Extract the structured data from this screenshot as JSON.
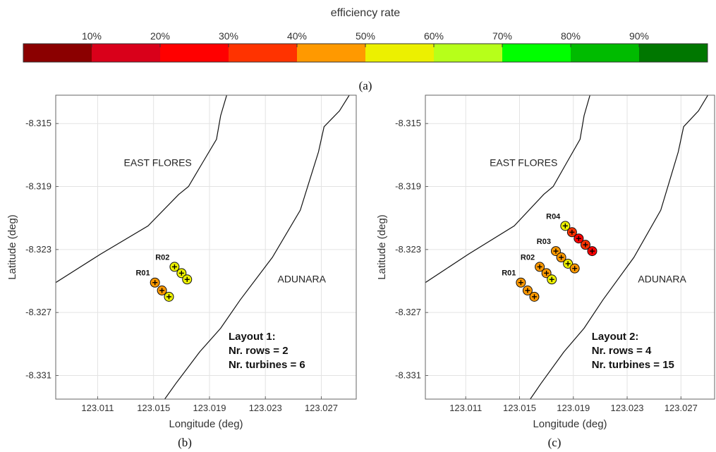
{
  "colorbar": {
    "title": "efficiency rate",
    "tick_labels": [
      "10%",
      "20%",
      "30%",
      "40%",
      "50%",
      "60%",
      "70%",
      "80%",
      "90%"
    ],
    "ticks": [
      10,
      20,
      30,
      40,
      50,
      60,
      70,
      80,
      90
    ],
    "range": [
      0,
      100
    ],
    "colors": [
      "#8b0000",
      "#d9001a",
      "#ff0000",
      "#ff3300",
      "#ff9900",
      "#ecf000",
      "#b7ff1a",
      "#00ff00",
      "#00bb00",
      "#007700"
    ]
  },
  "panel_labels": {
    "a": "(a)",
    "b": "(b)",
    "c": "(c)"
  },
  "chart_data": [
    {
      "type": "scatter",
      "panel": "b",
      "xlabel": "Longitude (deg)",
      "ylabel": "Latitude (deg)",
      "xlim": [
        123.008,
        123.0295
      ],
      "ylim": [
        -8.3325,
        -8.3132
      ],
      "xticks": [
        123.011,
        123.015,
        123.019,
        123.023,
        123.027
      ],
      "yticks": [
        -8.315,
        -8.319,
        -8.323,
        -8.327,
        -8.331
      ],
      "xtick_labels": [
        "123.011",
        "123.015",
        "123.019",
        "123.023",
        "123.027"
      ],
      "ytick_labels": [
        "-8.315",
        "-8.319",
        "-8.323",
        "-8.327",
        "-8.331"
      ],
      "grid": true,
      "regions": [
        {
          "label": "EAST FLORES",
          "x": 123.0153,
          "y": -8.3177
        },
        {
          "label": "ADUNARA",
          "x": 123.0256,
          "y": -8.3251
        }
      ],
      "coastlines": [
        [
          [
            123.008,
            -8.3251
          ],
          [
            123.0112,
            -8.3233
          ],
          [
            123.0146,
            -8.3215
          ],
          [
            123.0168,
            -8.3195
          ],
          [
            123.0175,
            -8.319
          ],
          [
            123.0185,
            -8.3175
          ],
          [
            123.0195,
            -8.316
          ],
          [
            123.0198,
            -8.3145
          ],
          [
            123.0203,
            -8.313
          ]
        ],
        [
          [
            123.0158,
            -8.3325
          ],
          [
            123.0166,
            -8.3315
          ],
          [
            123.0183,
            -8.3295
          ],
          [
            123.0198,
            -8.328
          ],
          [
            123.0212,
            -8.3262
          ],
          [
            123.0235,
            -8.3235
          ],
          [
            123.0255,
            -8.3205
          ],
          [
            123.0262,
            -8.3185
          ],
          [
            123.0268,
            -8.3168
          ],
          [
            123.0272,
            -8.3152
          ],
          [
            123.0283,
            -8.3142
          ],
          [
            123.029,
            -8.3132
          ]
        ]
      ],
      "rows": [
        {
          "label": "R01",
          "turbines": [
            {
              "x": 123.0151,
              "y": -8.3251,
              "eff": 45
            },
            {
              "x": 123.0156,
              "y": -8.3256,
              "eff": 45
            },
            {
              "x": 123.0161,
              "y": -8.326,
              "eff": 52
            }
          ]
        },
        {
          "label": "R02",
          "turbines": [
            {
              "x": 123.0165,
              "y": -8.3241,
              "eff": 55
            },
            {
              "x": 123.017,
              "y": -8.3245,
              "eff": 55
            },
            {
              "x": 123.0174,
              "y": -8.3249,
              "eff": 55
            }
          ]
        }
      ],
      "annotation": [
        "Layout 1:",
        "Nr. rows = 2",
        "Nr. turbines = 6"
      ]
    },
    {
      "type": "scatter",
      "panel": "c",
      "xlabel": "Longitude (deg)",
      "ylabel": "Latitude (deg)",
      "xlim": [
        123.008,
        123.0295
      ],
      "ylim": [
        -8.3325,
        -8.3132
      ],
      "xticks": [
        123.011,
        123.015,
        123.019,
        123.023,
        123.027
      ],
      "yticks": [
        -8.315,
        -8.319,
        -8.323,
        -8.327,
        -8.331
      ],
      "xtick_labels": [
        "123.011",
        "123.015",
        "123.019",
        "123.023",
        "123.027"
      ],
      "ytick_labels": [
        "-8.315",
        "-8.319",
        "-8.323",
        "-8.327",
        "-8.331"
      ],
      "grid": true,
      "regions": [
        {
          "label": "EAST FLORES",
          "x": 123.0153,
          "y": -8.3177
        },
        {
          "label": "ADUNARA",
          "x": 123.0256,
          "y": -8.3251
        }
      ],
      "coastlines": [
        [
          [
            123.008,
            -8.3251
          ],
          [
            123.0112,
            -8.3233
          ],
          [
            123.0146,
            -8.3215
          ],
          [
            123.0168,
            -8.3195
          ],
          [
            123.0175,
            -8.319
          ],
          [
            123.0185,
            -8.3175
          ],
          [
            123.0195,
            -8.316
          ],
          [
            123.0198,
            -8.3145
          ],
          [
            123.0203,
            -8.313
          ]
        ],
        [
          [
            123.0158,
            -8.3325
          ],
          [
            123.0166,
            -8.3315
          ],
          [
            123.0183,
            -8.3295
          ],
          [
            123.0198,
            -8.328
          ],
          [
            123.0212,
            -8.3262
          ],
          [
            123.0235,
            -8.3235
          ],
          [
            123.0255,
            -8.3205
          ],
          [
            123.0262,
            -8.3185
          ],
          [
            123.0268,
            -8.3168
          ],
          [
            123.0272,
            -8.3152
          ],
          [
            123.0283,
            -8.3142
          ],
          [
            123.029,
            -8.3132
          ]
        ]
      ],
      "rows": [
        {
          "label": "R01",
          "turbines": [
            {
              "x": 123.0151,
              "y": -8.3251,
              "eff": 45
            },
            {
              "x": 123.0156,
              "y": -8.3256,
              "eff": 45
            },
            {
              "x": 123.0161,
              "y": -8.326,
              "eff": 45
            }
          ]
        },
        {
          "label": "R02",
          "turbines": [
            {
              "x": 123.0165,
              "y": -8.3241,
              "eff": 45
            },
            {
              "x": 123.017,
              "y": -8.3245,
              "eff": 45
            },
            {
              "x": 123.0174,
              "y": -8.3249,
              "eff": 55
            }
          ]
        },
        {
          "label": "R03",
          "turbines": [
            {
              "x": 123.0177,
              "y": -8.3231,
              "eff": 45
            },
            {
              "x": 123.0181,
              "y": -8.3235,
              "eff": 45
            },
            {
              "x": 123.0186,
              "y": -8.3239,
              "eff": 55
            },
            {
              "x": 123.0191,
              "y": -8.3242,
              "eff": 45
            }
          ]
        },
        {
          "label": "R04",
          "turbines": [
            {
              "x": 123.0184,
              "y": -8.3215,
              "eff": 55
            },
            {
              "x": 123.0189,
              "y": -8.3219,
              "eff": 35
            },
            {
              "x": 123.0194,
              "y": -8.3223,
              "eff": 25
            },
            {
              "x": 123.0199,
              "y": -8.3227,
              "eff": 35
            },
            {
              "x": 123.0204,
              "y": -8.3231,
              "eff": 25
            }
          ]
        }
      ],
      "annotation": [
        "Layout 2:",
        "Nr. rows = 4",
        "Nr. turbines = 15"
      ]
    }
  ]
}
